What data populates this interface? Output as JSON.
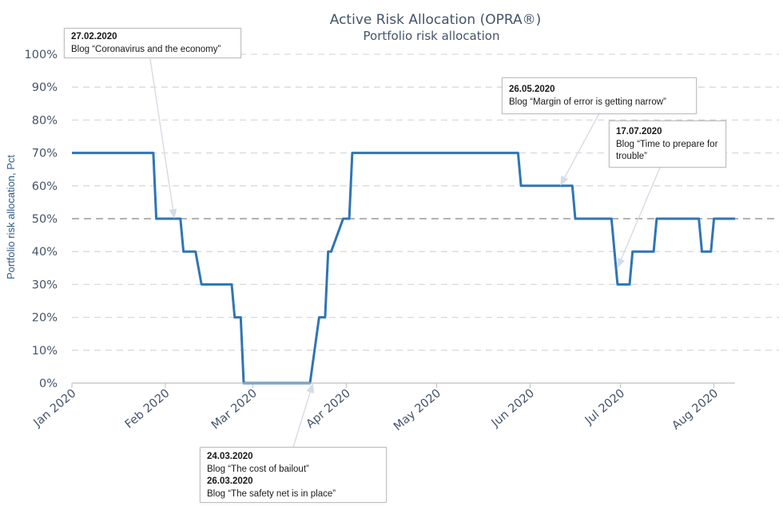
{
  "chart_data": {
    "type": "line",
    "title": "Active Risk Allocation (OPRA®)",
    "subtitle": "Portfolio risk allocation",
    "ylabel": "Portfolio risk allocation, Pct",
    "ylim": [
      0,
      100
    ],
    "yticks": [
      "0%",
      "10%",
      "20%",
      "30%",
      "40%",
      "50%",
      "60%",
      "70%",
      "80%",
      "90%",
      "100%"
    ],
    "xlim": [
      "2020-01-01",
      "2020-08-08"
    ],
    "xticks": [
      {
        "date": "2020-01-01",
        "label": "Jan 2020"
      },
      {
        "date": "2020-02-01",
        "label": "Feb 2020"
      },
      {
        "date": "2020-03-01",
        "label": "Mar 2020"
      },
      {
        "date": "2020-04-01",
        "label": "Apr 2020"
      },
      {
        "date": "2020-05-01",
        "label": "May 2020"
      },
      {
        "date": "2020-06-01",
        "label": "Jun 2020"
      },
      {
        "date": "2020-07-01",
        "label": "Jul 2020"
      },
      {
        "date": "2020-08-01",
        "label": "Aug 2020"
      }
    ],
    "grid": true,
    "reference_line": {
      "y": 50,
      "style": "dashed"
    },
    "colors": {
      "line": "#2e75b6",
      "reference": "#999999",
      "grid": "#d9d9d9",
      "text": "#44546a"
    },
    "series": [
      {
        "points": [
          [
            "2020-01-01",
            70
          ],
          [
            "2020-01-28",
            70
          ],
          [
            "2020-01-29",
            50
          ],
          [
            "2020-02-06",
            50
          ],
          [
            "2020-02-07",
            40
          ],
          [
            "2020-02-11",
            40
          ],
          [
            "2020-02-13",
            30
          ],
          [
            "2020-02-23",
            30
          ],
          [
            "2020-02-24",
            20
          ],
          [
            "2020-02-26",
            20
          ],
          [
            "2020-02-27",
            0
          ],
          [
            "2020-03-20",
            0
          ],
          [
            "2020-03-23",
            20
          ],
          [
            "2020-03-25",
            20
          ],
          [
            "2020-03-26",
            40
          ],
          [
            "2020-03-27",
            40
          ],
          [
            "2020-03-31",
            50
          ],
          [
            "2020-04-02",
            50
          ],
          [
            "2020-04-03",
            70
          ],
          [
            "2020-05-28",
            70
          ],
          [
            "2020-05-29",
            60
          ],
          [
            "2020-06-15",
            60
          ],
          [
            "2020-06-16",
            50
          ],
          [
            "2020-06-28",
            50
          ],
          [
            "2020-06-30",
            30
          ],
          [
            "2020-07-04",
            30
          ],
          [
            "2020-07-05",
            40
          ],
          [
            "2020-07-12",
            40
          ],
          [
            "2020-07-13",
            50
          ],
          [
            "2020-07-27",
            50
          ],
          [
            "2020-07-28",
            40
          ],
          [
            "2020-07-31",
            40
          ],
          [
            "2020-08-01",
            50
          ],
          [
            "2020-08-08",
            50
          ]
        ]
      }
    ],
    "annotations": [
      {
        "id": "a1",
        "date": "27.02.2020",
        "text": "Blog “Coronavirus and the economy”",
        "target": [
          "2020-02-04",
          50
        ]
      },
      {
        "id": "a2",
        "date": "26.05.2020",
        "text": "Blog “Margin of error is getting narrow”",
        "target": [
          "2020-06-11",
          60
        ]
      },
      {
        "id": "a3",
        "date": "17.07.2020",
        "text": "Blog “Time to prepare for trouble”",
        "target": [
          "2020-06-30",
          35
        ]
      },
      {
        "id": "a4",
        "date": "24.03.2020",
        "text": "Blog “The cost of bailout”",
        "date2": "26.03.2020",
        "text2": "Blog “The safety net is in place”",
        "target": [
          "2020-03-21",
          0
        ]
      }
    ]
  }
}
